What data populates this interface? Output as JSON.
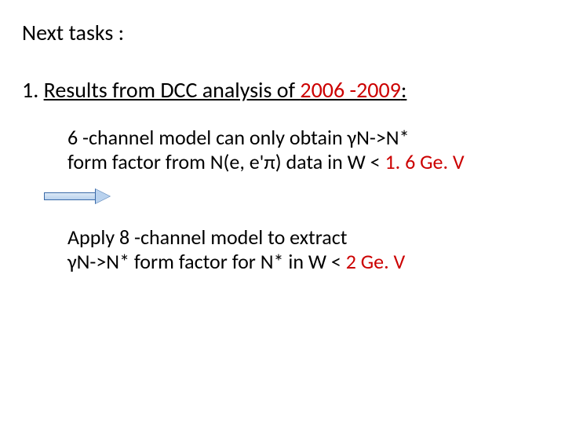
{
  "slide": {
    "title": "Next tasks :",
    "heading": {
      "number": "1.",
      "text": "Results from DCC analysis of ",
      "years": "2006 -2009",
      "colon": ":"
    },
    "para1": {
      "line1_a": "6 -channel model can only obtain   γN->N*",
      "line2_a": "form factor from N(e, e'π) data in W < ",
      "line2_red": "1. 6 Ge. V"
    },
    "para2": {
      "line1": "Apply 8 -channel model to extract",
      "line2_a": "γN->N* form factor  for N* in W < ",
      "line2_red": "2 Ge. V"
    }
  },
  "style": {
    "text_color": "#000000",
    "accent_color": "#cc0000",
    "background_color": "#ffffff",
    "title_fontsize": 28,
    "body_fontsize": 26,
    "arrow_fill": "#b9d2ee",
    "arrow_border": "#3a6aa8",
    "font_family": "Calibri"
  }
}
